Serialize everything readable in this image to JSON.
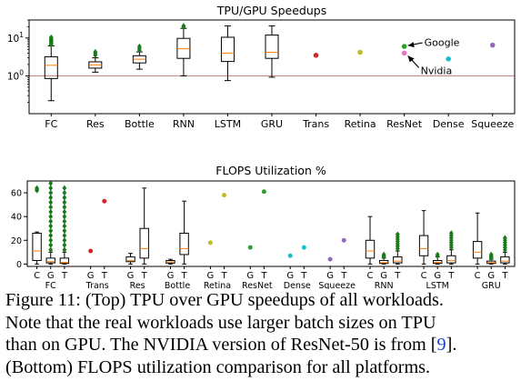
{
  "chart_data": [
    {
      "type": "box",
      "title": "TPU/GPU Speedups",
      "yscale": "log",
      "ylim": [
        0.1,
        30
      ],
      "yticks": [
        {
          "v": 1,
          "label": "10^0"
        },
        {
          "v": 10,
          "label": "10^1"
        }
      ],
      "categories": [
        "FC",
        "Res",
        "Bottle",
        "RNN",
        "LSTM",
        "GRU",
        "Trans",
        "Retina",
        "ResNet",
        "Dense",
        "Squeeze"
      ],
      "reference_line": 1,
      "boxes": [
        {
          "cat": "FC",
          "min": 0.22,
          "q1": 0.85,
          "med": 1.9,
          "q3": 3.2,
          "max": 6.2,
          "fliers": [
            6.6,
            7.0,
            7.4,
            7.8,
            8.2,
            8.7,
            9.2,
            9.8,
            10.4
          ]
        },
        {
          "cat": "Res",
          "min": 1.25,
          "q1": 1.6,
          "med": 1.95,
          "q3": 2.35,
          "max": 3.0,
          "fliers": [
            3.5,
            3.9,
            4.3
          ]
        },
        {
          "cat": "Bottle",
          "min": 1.5,
          "q1": 2.2,
          "med": 2.75,
          "q3": 3.4,
          "max": 4.3,
          "fliers": [
            4.8,
            5.4,
            6.0
          ]
        },
        {
          "cat": "RNN",
          "min": 1.0,
          "q1": 2.9,
          "med": 5.2,
          "q3": 9.8,
          "max": 18.0,
          "fliers": [
            19.5,
            21.0
          ]
        },
        {
          "cat": "LSTM",
          "min": 0.75,
          "q1": 2.4,
          "med": 4.0,
          "q3": 10.5,
          "max": 21.0,
          "fliers": []
        },
        {
          "cat": "GRU",
          "min": 0.92,
          "q1": 2.9,
          "med": 4.2,
          "q3": 12.0,
          "max": 21.0,
          "fliers": []
        }
      ],
      "points": [
        {
          "cat": "Trans",
          "value": 3.5,
          "color": "#d62728"
        },
        {
          "cat": "Retina",
          "value": 4.2,
          "color": "#bcbd22"
        },
        {
          "cat": "ResNet",
          "value": 6.0,
          "color": "#2ca02c",
          "label": "Google"
        },
        {
          "cat": "ResNet",
          "value": 4.0,
          "color": "#e377c2",
          "label": "Nvidia"
        },
        {
          "cat": "Dense",
          "value": 2.8,
          "color": "#17becf"
        },
        {
          "cat": "Squeeze",
          "value": 6.5,
          "color": "#9467bd"
        }
      ]
    },
    {
      "type": "box",
      "title": "FLOPS Utilization %",
      "ylim": [
        -2,
        70
      ],
      "yticks": [
        0,
        20,
        40,
        60
      ],
      "groups": [
        "FC",
        "Trans",
        "Res",
        "Bottle",
        "Retina",
        "ResNet",
        "Dense",
        "Squeeze",
        "RNN",
        "LSTM",
        "GRU"
      ],
      "boxes": [
        {
          "group": "FC",
          "tick": "C",
          "min": 0,
          "q1": 3,
          "med": 11,
          "q3": 26,
          "max": 27,
          "fliers": [
            62,
            63,
            64
          ]
        },
        {
          "group": "FC",
          "tick": "G",
          "min": 0,
          "q1": 1,
          "med": 2,
          "q3": 5,
          "max": 10,
          "fliers": [
            12,
            16,
            20,
            24,
            28,
            32,
            36,
            40,
            44,
            48,
            52,
            56,
            60,
            64,
            68
          ]
        },
        {
          "group": "FC",
          "tick": "T",
          "min": 0,
          "q1": 0.5,
          "med": 1.5,
          "q3": 5,
          "max": 10,
          "fliers": [
            12,
            16,
            20,
            24,
            28,
            32,
            36,
            40,
            44,
            48,
            52,
            56,
            60,
            64
          ]
        },
        {
          "group": "Res",
          "tick": "G",
          "min": 0,
          "q1": 2,
          "med": 3,
          "q3": 6,
          "max": 9,
          "fliers": []
        },
        {
          "group": "Res",
          "tick": "T",
          "min": 0,
          "q1": 5,
          "med": 13,
          "q3": 30,
          "max": 64,
          "fliers": []
        },
        {
          "group": "Bottle",
          "tick": "G",
          "min": 0,
          "q1": 0.8,
          "med": 1.8,
          "q3": 3,
          "max": 4,
          "fliers": []
        },
        {
          "group": "Bottle",
          "tick": "T",
          "min": 0,
          "q1": 8,
          "med": 13,
          "q3": 26,
          "max": 53,
          "fliers": []
        },
        {
          "group": "RNN",
          "tick": "C",
          "min": 0,
          "q1": 5,
          "med": 11,
          "q3": 20,
          "max": 40,
          "fliers": []
        },
        {
          "group": "RNN",
          "tick": "G",
          "min": 0,
          "q1": 0.5,
          "med": 1.2,
          "q3": 3,
          "max": 5,
          "fliers": [
            6,
            7,
            8
          ]
        },
        {
          "group": "RNN",
          "tick": "T",
          "min": 0,
          "q1": 1,
          "med": 2.5,
          "q3": 6,
          "max": 11,
          "fliers": [
            13,
            15,
            17,
            19,
            21,
            23,
            25
          ]
        },
        {
          "group": "LSTM",
          "tick": "C",
          "min": 0,
          "q1": 7,
          "med": 13,
          "q3": 24,
          "max": 45,
          "fliers": []
        },
        {
          "group": "LSTM",
          "tick": "G",
          "min": 0,
          "q1": 0.5,
          "med": 1.5,
          "q3": 3,
          "max": 6,
          "fliers": [
            7,
            8
          ]
        },
        {
          "group": "LSTM",
          "tick": "T",
          "min": 0,
          "q1": 1,
          "med": 3,
          "q3": 7,
          "max": 12,
          "fliers": [
            14,
            16,
            18,
            20,
            22,
            24,
            26
          ]
        },
        {
          "group": "GRU",
          "tick": "C",
          "min": 0,
          "q1": 5,
          "med": 10,
          "q3": 19,
          "max": 43,
          "fliers": []
        },
        {
          "group": "GRU",
          "tick": "G",
          "min": 0,
          "q1": 0.5,
          "med": 1.2,
          "q3": 2.5,
          "max": 4,
          "fliers": [
            5,
            6,
            7,
            8
          ]
        },
        {
          "group": "GRU",
          "tick": "T",
          "min": 0,
          "q1": 1,
          "med": 2.5,
          "q3": 6,
          "max": 10,
          "fliers": [
            12,
            14,
            16,
            18,
            20,
            22
          ]
        }
      ],
      "points": [
        {
          "group": "Trans",
          "tick": "G",
          "value": 11,
          "color": "#d62728"
        },
        {
          "group": "Trans",
          "tick": "T",
          "value": 53,
          "color": "#d62728"
        },
        {
          "group": "Retina",
          "tick": "G",
          "value": 18,
          "color": "#bcbd22"
        },
        {
          "group": "Retina",
          "tick": "T",
          "value": 58,
          "color": "#bcbd22"
        },
        {
          "group": "ResNet",
          "tick": "G",
          "value": 14,
          "color": "#2ca02c"
        },
        {
          "group": "ResNet",
          "tick": "T",
          "value": 61,
          "color": "#2ca02c"
        },
        {
          "group": "Dense",
          "tick": "G",
          "value": 7,
          "color": "#17becf"
        },
        {
          "group": "Dense",
          "tick": "T",
          "value": 14,
          "color": "#17becf"
        },
        {
          "group": "Squeeze",
          "tick": "G",
          "value": 4,
          "color": "#9467bd"
        },
        {
          "group": "Squeeze",
          "tick": "T",
          "value": 20,
          "color": "#9467bd"
        }
      ]
    }
  ],
  "caption": {
    "line1": "Figure 11: (Top) TPU over GPU speedups of all workloads.",
    "line2": "Note that the real workloads use larger batch sizes on TPU",
    "line3_before": "than on GPU. The NVIDIA version of ResNet-50 is from [",
    "line3_cite": "9",
    "line3_after": "].",
    "line4": "(Bottom) FLOPS utilization comparison for all platforms."
  },
  "colors": {
    "box": "#000000",
    "median": "#ff7f0e",
    "flier": "#1a7a1a",
    "refline": "#c47a7a"
  }
}
